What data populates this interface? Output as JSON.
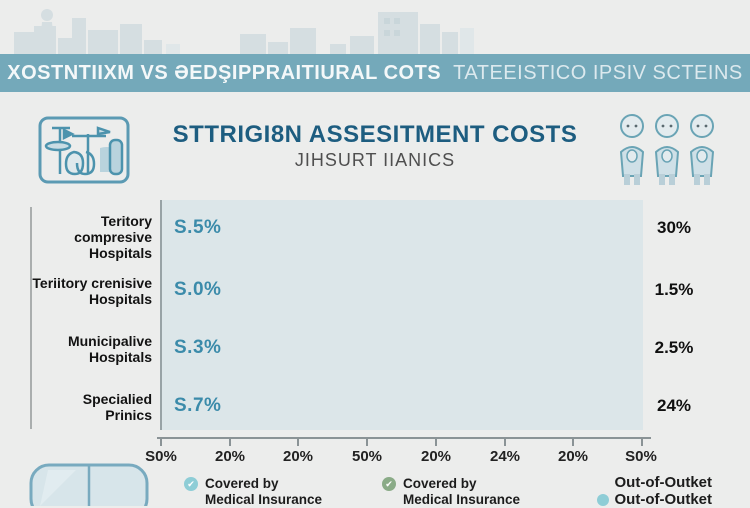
{
  "banner": {
    "title_main": "XOSTNTIIXM VS ƏEDŞIPPRAITIURAL COTS",
    "title_secondary": "TATEEISTICO IPSIV SCTEINS"
  },
  "header": {
    "title": "STTRIGI8N ASSESITMENT COSTS",
    "subtitle": "JIHSURT IIANICS",
    "left_icon": "medical-equipment-icon",
    "right_icon": "three-nurses-icon"
  },
  "chart_data": {
    "type": "bar",
    "orientation": "horizontal",
    "title": "STTRIGI8N ASSESITMENT COSTS",
    "plot_bg": "#dce6e9",
    "bar_color": "#2a7390",
    "value_label_color": "#3b8baa",
    "grid": false,
    "categories": [
      {
        "line1": "Teritory compresive",
        "line2": "Hospitals"
      },
      {
        "line1": "Teriitory crenisive",
        "line2": "Hospitals"
      },
      {
        "line1": "Municipalive",
        "line2": "Hospitals"
      },
      {
        "line1": "Specialied",
        "line2": "Prinics"
      }
    ],
    "bars": [
      {
        "value_label": "S.5%",
        "length_pct": 81,
        "right_value": "30%"
      },
      {
        "value_label": "S.0%",
        "length_pct": 43,
        "right_value": "1.5%"
      },
      {
        "value_label": "S.3%",
        "length_pct": 15,
        "right_value": "2.5%"
      },
      {
        "value_label": "S.7%",
        "length_pct": 12,
        "right_value": "24%"
      }
    ],
    "x_tick_labels": [
      "S0%",
      "20%",
      "20%",
      "50%",
      "20%",
      "24%",
      "20%",
      "S0%"
    ],
    "xlim_note": "ticks evenly spaced, labels garbled in source image"
  },
  "legend": {
    "items": [
      {
        "icon": "check-circle-teal",
        "line1": "Covered by",
        "line2": "Medical Insurance"
      },
      {
        "icon": "check-circle-green",
        "line1": "Covered by",
        "line2": "Medical Insurance"
      },
      {
        "icon": "dot-teal",
        "line1": "Out-of-Outket",
        "line2": "Out-of-Outket"
      }
    ]
  },
  "icons": {
    "check_glyph": "✔",
    "bottom_left": "pill-capsule-icon"
  },
  "colors": {
    "page_bg": "#ecedec",
    "banner_bg": "#74a9ba",
    "title_color": "#1d5d80",
    "skyline_building": "#d5dee1",
    "bar": "#2a7390",
    "plot_bg": "#dce6e9",
    "legend_teal": "#8ecdd6",
    "legend_green": "#8aab87"
  }
}
